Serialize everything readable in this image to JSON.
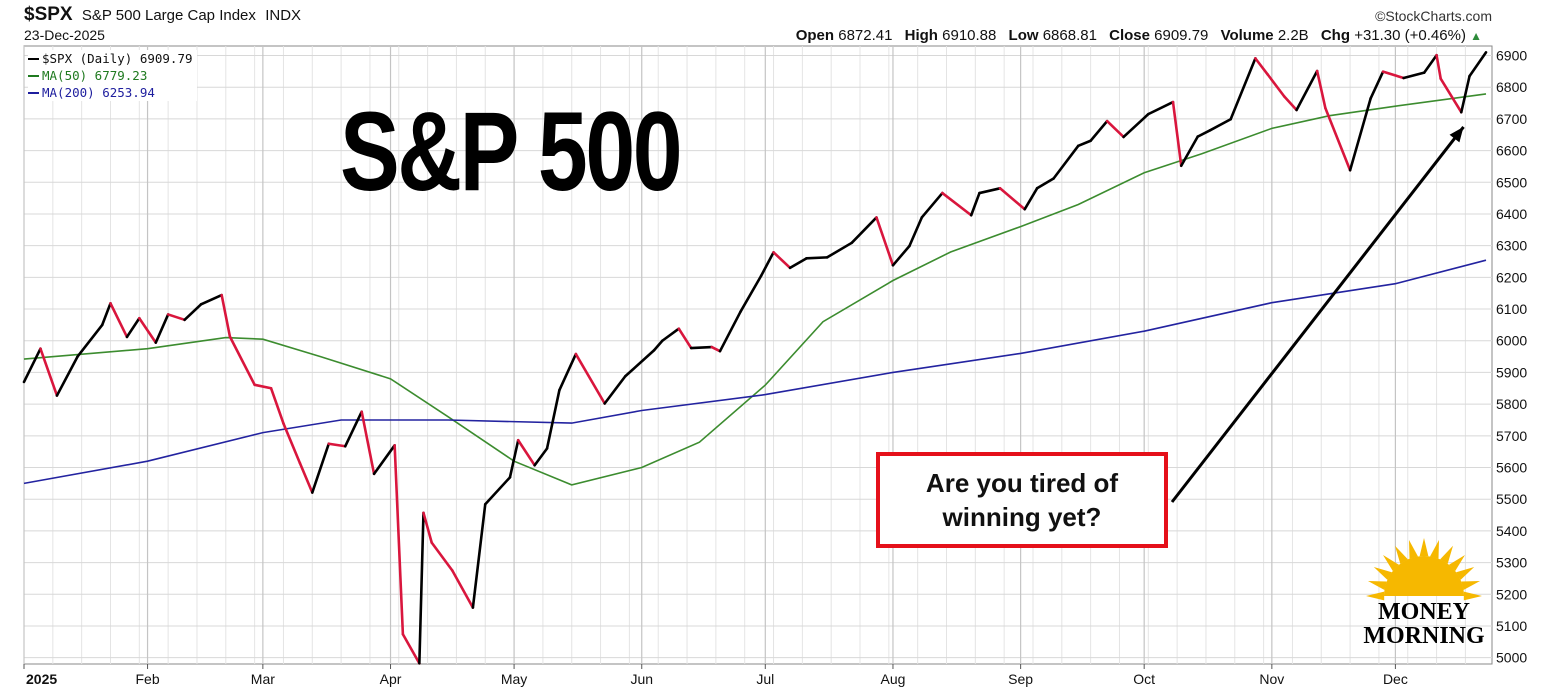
{
  "header": {
    "symbol": "$SPX",
    "description": "S&P 500 Large Cap Index",
    "exchange": "INDX",
    "date": "23-Dec-2025",
    "credit": "©StockCharts.com",
    "open_label": "Open",
    "open": "6872.41",
    "high_label": "High",
    "high": "6910.88",
    "low_label": "Low",
    "low": "6868.81",
    "close_label": "Close",
    "close": "6909.79",
    "volume_label": "Volume",
    "volume": "2.2B",
    "chg_label": "Chg",
    "chg": "+31.30 (+0.46%)",
    "chg_arrow": "▲"
  },
  "legend": [
    {
      "label": "$SPX (Daily) 6909.79",
      "color": "#000000"
    },
    {
      "label": "MA(50) 6779.23",
      "color": "#1f7a1f"
    },
    {
      "label": "MA(200) 6253.94",
      "color": "#1e1e9e"
    }
  ],
  "overlay": {
    "title": "S&P 500",
    "callout": "Are you tired of winning yet?",
    "logo_line1": "MONEY",
    "logo_line2": "MORNING"
  },
  "colors": {
    "up": "#000000",
    "down": "#d9163d",
    "ma50": "#3c8c2f",
    "ma200": "#2323a0",
    "grid": "#d8d8d8",
    "callout_border": "#e5101a",
    "logo_sun": "#f6b800"
  },
  "chart_data": {
    "type": "line",
    "x_range": [
      "2025-01-02",
      "2025-12-23"
    ],
    "ylim": [
      4980,
      6930
    ],
    "y_ticks": [
      5000,
      5100,
      5200,
      5300,
      5400,
      5500,
      5600,
      5700,
      5800,
      5900,
      6000,
      6100,
      6200,
      6300,
      6400,
      6500,
      6600,
      6700,
      6800,
      6900
    ],
    "x_ticks": [
      {
        "label": "2025",
        "date": "2025-01-02"
      },
      {
        "label": "Feb",
        "date": "2025-02-01"
      },
      {
        "label": "Mar",
        "date": "2025-03-01"
      },
      {
        "label": "Apr",
        "date": "2025-04-01"
      },
      {
        "label": "May",
        "date": "2025-05-01"
      },
      {
        "label": "Jun",
        "date": "2025-06-01"
      },
      {
        "label": "Jul",
        "date": "2025-07-01"
      },
      {
        "label": "Aug",
        "date": "2025-08-01"
      },
      {
        "label": "Sep",
        "date": "2025-09-01"
      },
      {
        "label": "Oct",
        "date": "2025-10-01"
      },
      {
        "label": "Nov",
        "date": "2025-11-01"
      },
      {
        "label": "Dec",
        "date": "2025-12-01"
      }
    ],
    "grid": true,
    "series": [
      {
        "name": "$SPX (Daily)",
        "points": [
          [
            "2025-01-02",
            5870
          ],
          [
            "2025-01-06",
            5975
          ],
          [
            "2025-01-10",
            5827
          ],
          [
            "2025-01-15",
            5950
          ],
          [
            "2025-01-21",
            6050
          ],
          [
            "2025-01-23",
            6118
          ],
          [
            "2025-01-27",
            6012
          ],
          [
            "2025-01-30",
            6071
          ],
          [
            "2025-02-03",
            5994
          ],
          [
            "2025-02-06",
            6083
          ],
          [
            "2025-02-10",
            6066
          ],
          [
            "2025-02-14",
            6115
          ],
          [
            "2025-02-19",
            6144
          ],
          [
            "2025-02-21",
            6013
          ],
          [
            "2025-02-27",
            5861
          ],
          [
            "2025-03-03",
            5850
          ],
          [
            "2025-03-06",
            5739
          ],
          [
            "2025-03-10",
            5614
          ],
          [
            "2025-03-13",
            5521
          ],
          [
            "2025-03-17",
            5675
          ],
          [
            "2025-03-21",
            5667
          ],
          [
            "2025-03-25",
            5776
          ],
          [
            "2025-03-28",
            5580
          ],
          [
            "2025-04-02",
            5670
          ],
          [
            "2025-04-04",
            5074
          ],
          [
            "2025-04-08",
            4982
          ],
          [
            "2025-04-09",
            5457
          ],
          [
            "2025-04-11",
            5363
          ],
          [
            "2025-04-16",
            5275
          ],
          [
            "2025-04-21",
            5158
          ],
          [
            "2025-04-24",
            5484
          ],
          [
            "2025-04-30",
            5569
          ],
          [
            "2025-05-02",
            5686
          ],
          [
            "2025-05-06",
            5607
          ],
          [
            "2025-05-09",
            5660
          ],
          [
            "2025-05-12",
            5844
          ],
          [
            "2025-05-16",
            5958
          ],
          [
            "2025-05-23",
            5802
          ],
          [
            "2025-05-28",
            5888
          ],
          [
            "2025-06-04",
            5970
          ],
          [
            "2025-06-06",
            6000
          ],
          [
            "2025-06-10",
            6038
          ],
          [
            "2025-06-13",
            5977
          ],
          [
            "2025-06-18",
            5980
          ],
          [
            "2025-06-20",
            5967
          ],
          [
            "2025-06-25",
            6092
          ],
          [
            "2025-06-30",
            6205
          ],
          [
            "2025-07-03",
            6279
          ],
          [
            "2025-07-07",
            6230
          ],
          [
            "2025-07-11",
            6260
          ],
          [
            "2025-07-16",
            6263
          ],
          [
            "2025-07-22",
            6309
          ],
          [
            "2025-07-28",
            6389
          ],
          [
            "2025-08-01",
            6238
          ],
          [
            "2025-08-05",
            6299
          ],
          [
            "2025-08-08",
            6389
          ],
          [
            "2025-08-13",
            6466
          ],
          [
            "2025-08-20",
            6396
          ],
          [
            "2025-08-22",
            6466
          ],
          [
            "2025-08-27",
            6481
          ],
          [
            "2025-09-02",
            6415
          ],
          [
            "2025-09-05",
            6481
          ],
          [
            "2025-09-09",
            6512
          ],
          [
            "2025-09-15",
            6615
          ],
          [
            "2025-09-18",
            6631
          ],
          [
            "2025-09-22",
            6693
          ],
          [
            "2025-09-26",
            6643
          ],
          [
            "2025-10-02",
            6715
          ],
          [
            "2025-10-08",
            6753
          ],
          [
            "2025-10-10",
            6552
          ],
          [
            "2025-10-14",
            6644
          ],
          [
            "2025-10-17",
            6664
          ],
          [
            "2025-10-22",
            6699
          ],
          [
            "2025-10-28",
            6891
          ],
          [
            "2025-10-31",
            6840
          ],
          [
            "2025-11-04",
            6771
          ],
          [
            "2025-11-07",
            6728
          ],
          [
            "2025-11-12",
            6851
          ],
          [
            "2025-11-14",
            6734
          ],
          [
            "2025-11-20",
            6538
          ],
          [
            "2025-11-25",
            6765
          ],
          [
            "2025-11-28",
            6849
          ],
          [
            "2025-12-03",
            6829
          ],
          [
            "2025-12-08",
            6846
          ],
          [
            "2025-12-11",
            6901
          ],
          [
            "2025-12-12",
            6827
          ],
          [
            "2025-12-17",
            6721
          ],
          [
            "2025-12-19",
            6835
          ],
          [
            "2025-12-23",
            6910
          ]
        ]
      },
      {
        "name": "MA(50)",
        "points": [
          [
            "2025-01-02",
            5942
          ],
          [
            "2025-02-01",
            5975
          ],
          [
            "2025-02-20",
            6010
          ],
          [
            "2025-03-01",
            6005
          ],
          [
            "2025-03-15",
            5950
          ],
          [
            "2025-04-01",
            5880
          ],
          [
            "2025-04-15",
            5760
          ],
          [
            "2025-05-01",
            5620
          ],
          [
            "2025-05-15",
            5545
          ],
          [
            "2025-06-01",
            5600
          ],
          [
            "2025-06-15",
            5680
          ],
          [
            "2025-07-01",
            5860
          ],
          [
            "2025-07-15",
            6060
          ],
          [
            "2025-08-01",
            6190
          ],
          [
            "2025-08-15",
            6280
          ],
          [
            "2025-09-01",
            6360
          ],
          [
            "2025-09-15",
            6430
          ],
          [
            "2025-10-01",
            6530
          ],
          [
            "2025-10-15",
            6590
          ],
          [
            "2025-11-01",
            6670
          ],
          [
            "2025-11-15",
            6710
          ],
          [
            "2025-12-01",
            6740
          ],
          [
            "2025-12-23",
            6779
          ]
        ]
      },
      {
        "name": "MA(200)",
        "points": [
          [
            "2025-01-02",
            5550
          ],
          [
            "2025-02-01",
            5620
          ],
          [
            "2025-03-01",
            5710
          ],
          [
            "2025-03-20",
            5750
          ],
          [
            "2025-04-15",
            5750
          ],
          [
            "2025-05-15",
            5740
          ],
          [
            "2025-06-01",
            5780
          ],
          [
            "2025-07-01",
            5830
          ],
          [
            "2025-08-01",
            5900
          ],
          [
            "2025-09-01",
            5960
          ],
          [
            "2025-10-01",
            6030
          ],
          [
            "2025-11-01",
            6120
          ],
          [
            "2025-12-01",
            6180
          ],
          [
            "2025-12-23",
            6254
          ]
        ]
      }
    ],
    "annotations": [
      {
        "text": "Are you tired of winning yet?",
        "arrow_to": [
          "2025-12-19",
          6700
        ]
      }
    ]
  }
}
